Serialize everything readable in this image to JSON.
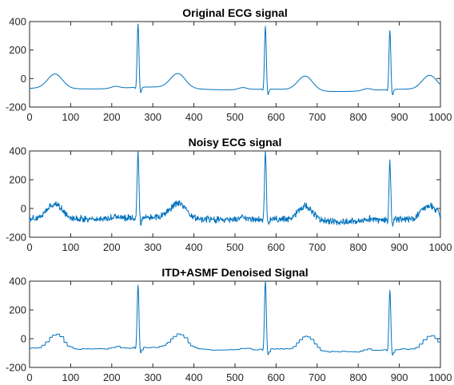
{
  "chart_data": [
    {
      "type": "line",
      "title": "Original ECG signal",
      "xlabel": "",
      "ylabel": "",
      "xlim": [
        0,
        1000
      ],
      "ylim": [
        -200,
        400
      ],
      "xticks": [
        0,
        100,
        200,
        300,
        400,
        500,
        600,
        700,
        800,
        900,
        1000
      ],
      "yticks": [
        -200,
        0,
        200,
        400
      ],
      "grid": false,
      "color": "#0072BD",
      "style": "clean",
      "beats": [
        {
          "r": 264,
          "peak": 365
        },
        {
          "r": 574,
          "peak": 363
        },
        {
          "r": 877,
          "peak": 335
        }
      ],
      "key_points": [
        {
          "x": 0,
          "y": -75
        },
        {
          "x": 62,
          "y": 32
        },
        {
          "x": 150,
          "y": -45
        },
        {
          "x": 264,
          "y": 365
        },
        {
          "x": 272,
          "y": -110
        },
        {
          "x": 362,
          "y": 18
        },
        {
          "x": 460,
          "y": -60
        },
        {
          "x": 574,
          "y": 363
        },
        {
          "x": 582,
          "y": -115
        },
        {
          "x": 663,
          "y": 10
        },
        {
          "x": 800,
          "y": -70
        },
        {
          "x": 877,
          "y": 335
        },
        {
          "x": 885,
          "y": -105
        },
        {
          "x": 965,
          "y": 5
        },
        {
          "x": 1000,
          "y": -60
        }
      ]
    },
    {
      "type": "line",
      "title": "Noisy ECG signal",
      "xlabel": "",
      "ylabel": "",
      "xlim": [
        0,
        1000
      ],
      "ylim": [
        -200,
        400
      ],
      "xticks": [
        0,
        100,
        200,
        300,
        400,
        500,
        600,
        700,
        800,
        900,
        1000
      ],
      "yticks": [
        -200,
        0,
        200,
        400
      ],
      "grid": false,
      "color": "#0072BD",
      "style": "noisy",
      "beats": [
        {
          "r": 264,
          "peak": 375
        },
        {
          "r": 574,
          "peak": 390
        },
        {
          "r": 877,
          "peak": 325
        }
      ],
      "key_points": [
        {
          "x": 0,
          "y": -75
        },
        {
          "x": 62,
          "y": 40
        },
        {
          "x": 264,
          "y": 375
        },
        {
          "x": 272,
          "y": -120
        },
        {
          "x": 362,
          "y": 20
        },
        {
          "x": 574,
          "y": 390
        },
        {
          "x": 582,
          "y": -130
        },
        {
          "x": 663,
          "y": 15
        },
        {
          "x": 877,
          "y": 325
        },
        {
          "x": 885,
          "y": -115
        },
        {
          "x": 965,
          "y": 25
        },
        {
          "x": 1000,
          "y": -55
        }
      ]
    },
    {
      "type": "line",
      "title": "ITD+ASMF Denoised Signal",
      "xlabel": "",
      "ylabel": "",
      "xlim": [
        0,
        1000
      ],
      "ylim": [
        -200,
        400
      ],
      "xticks": [
        0,
        100,
        200,
        300,
        400,
        500,
        600,
        700,
        800,
        900,
        1000
      ],
      "yticks": [
        -200,
        0,
        200,
        400
      ],
      "grid": false,
      "color": "#0072BD",
      "style": "stepped",
      "beats": [
        {
          "r": 264,
          "peak": 355
        },
        {
          "r": 574,
          "peak": 400
        },
        {
          "r": 877,
          "peak": 335
        }
      ],
      "key_points": [
        {
          "x": 0,
          "y": -75
        },
        {
          "x": 62,
          "y": 35
        },
        {
          "x": 264,
          "y": 355
        },
        {
          "x": 272,
          "y": -100
        },
        {
          "x": 362,
          "y": 20
        },
        {
          "x": 574,
          "y": 400
        },
        {
          "x": 582,
          "y": -115
        },
        {
          "x": 663,
          "y": 15
        },
        {
          "x": 877,
          "y": 335
        },
        {
          "x": 885,
          "y": -100
        },
        {
          "x": 965,
          "y": 20
        },
        {
          "x": 1000,
          "y": -50
        }
      ]
    }
  ]
}
